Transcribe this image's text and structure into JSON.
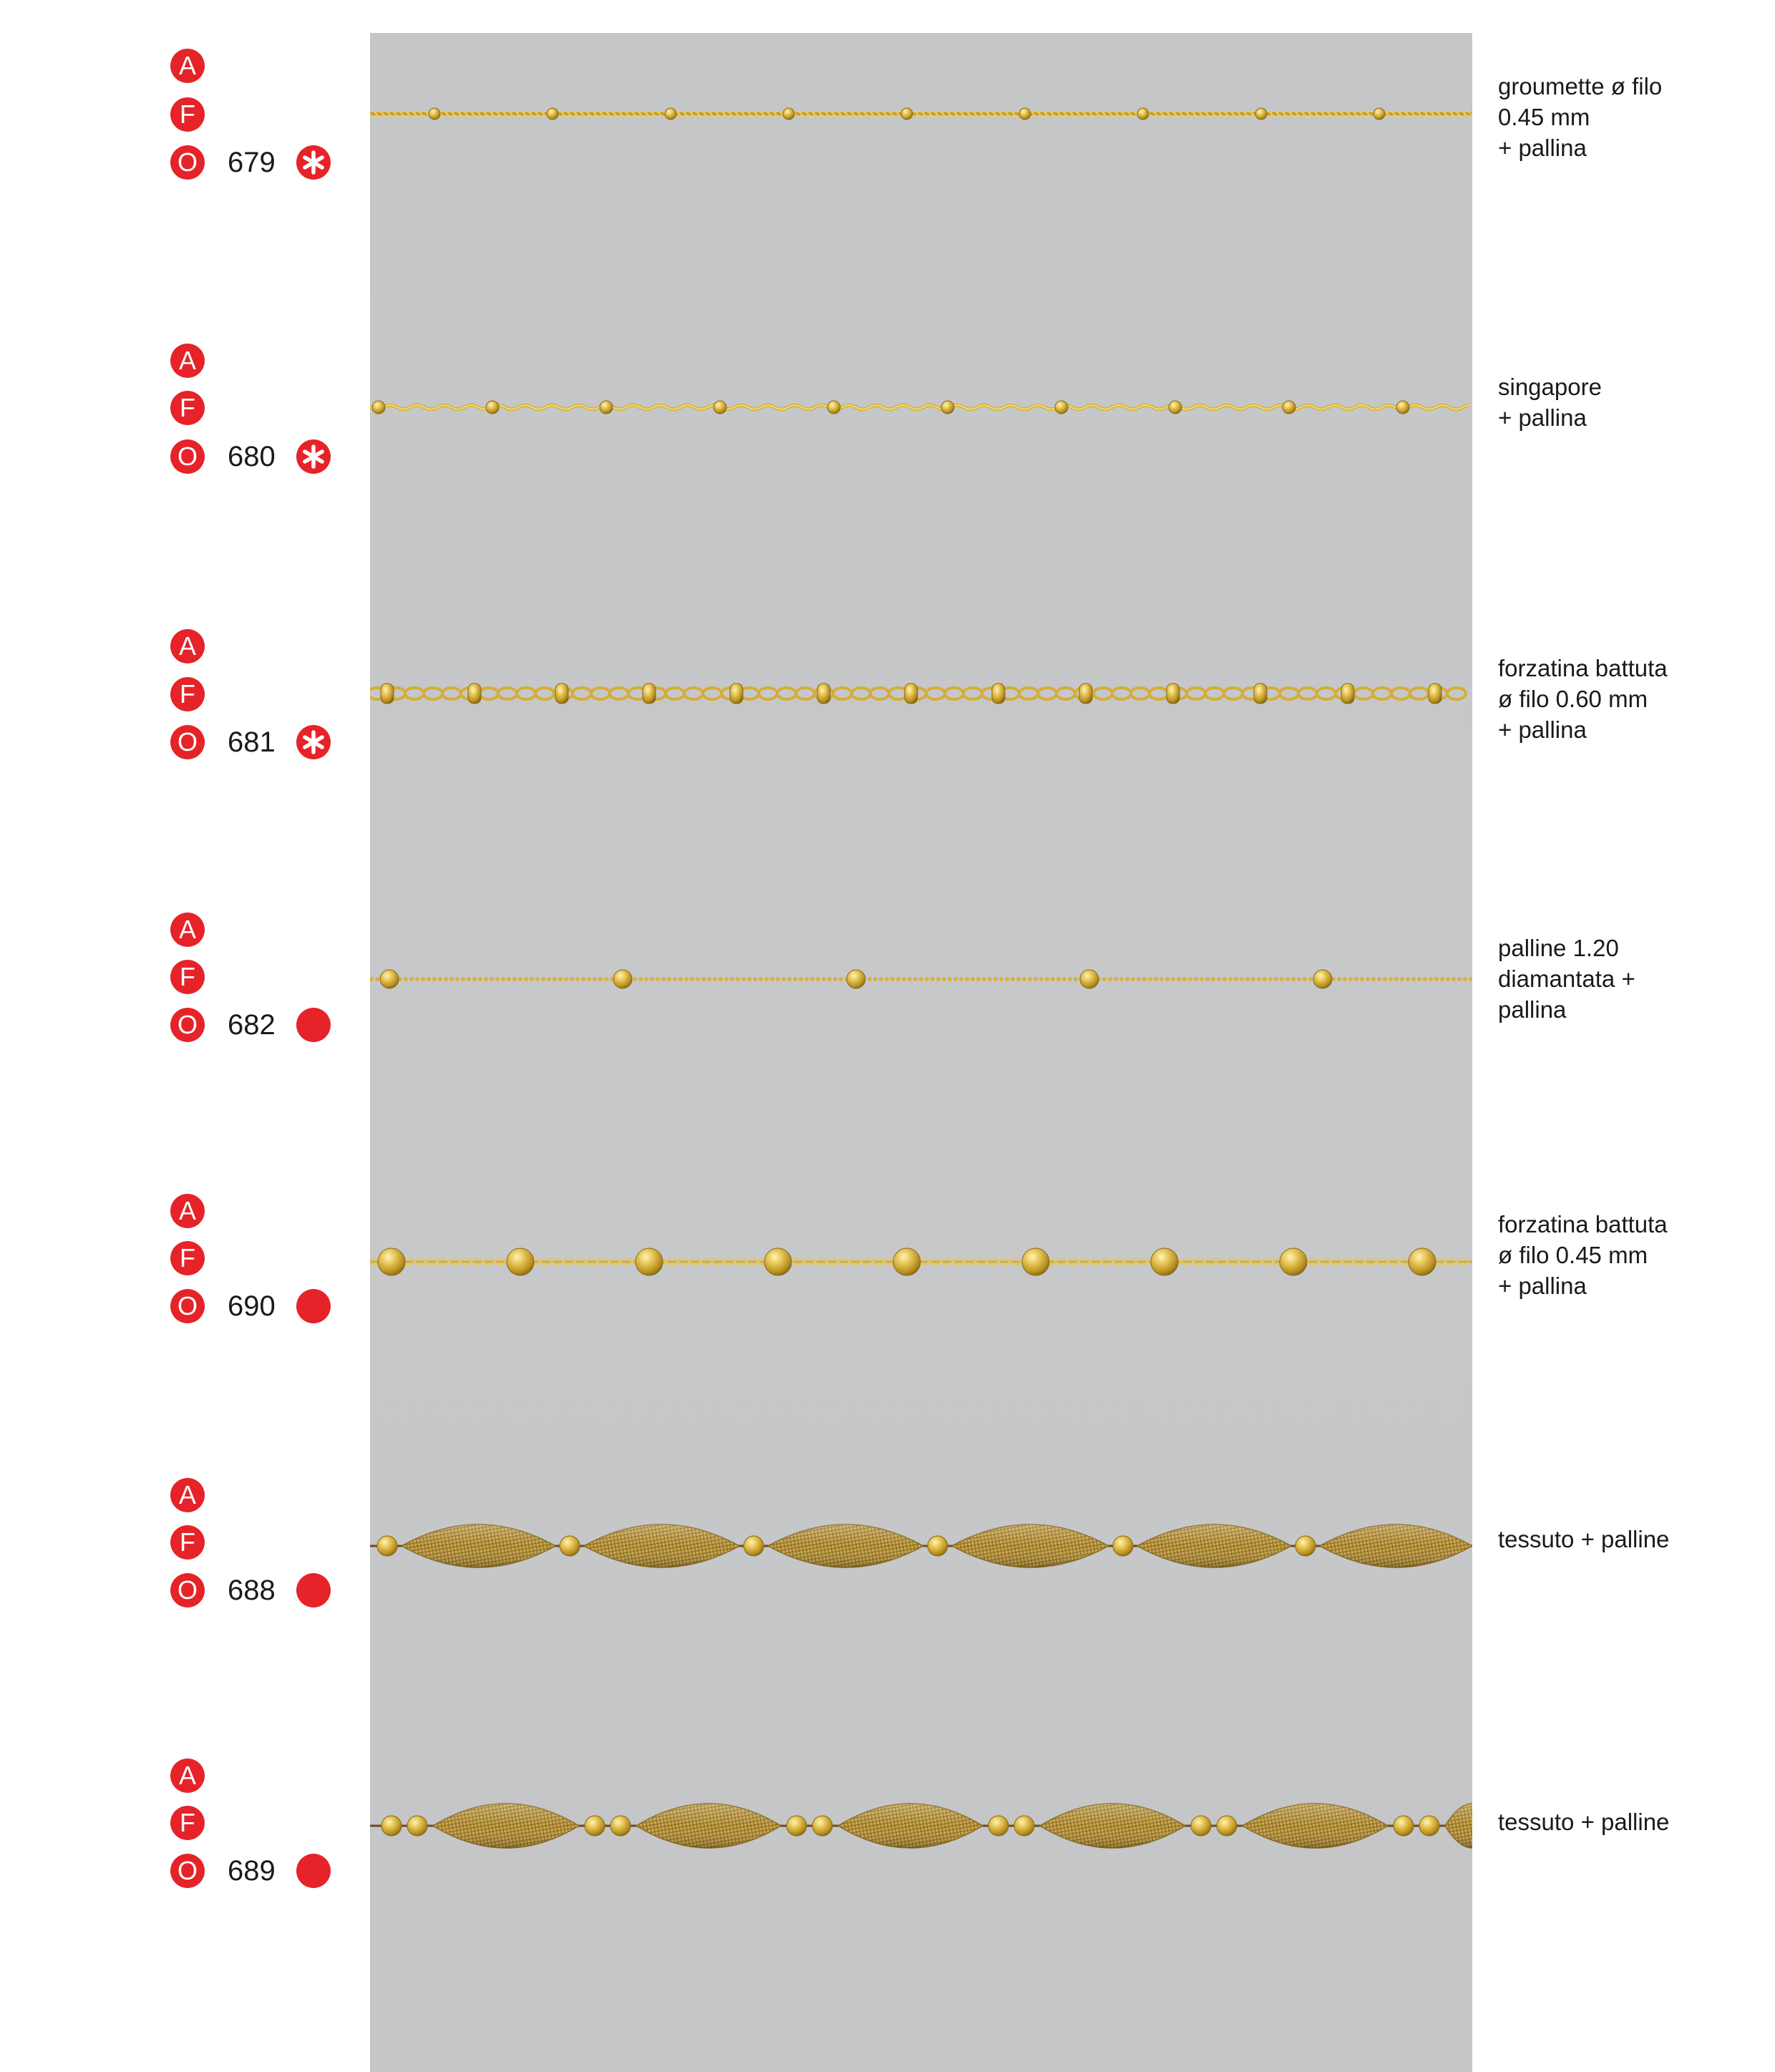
{
  "colors": {
    "accent_red": "#e52329",
    "panel_gray": "#c5c7c9",
    "gold": "#d7b23a",
    "gold_light": "#f2dc82",
    "gold_dark": "#9b7619",
    "mesh_gold": "#c9a54a"
  },
  "rows": [
    {
      "badges": [
        "A",
        "F",
        "O"
      ],
      "code": "679",
      "marker": "asterisk-icon",
      "chain_style": "groumette-ball",
      "desc": [
        "groumette ø filo",
        "0.45 mm",
        "+ pallina"
      ]
    },
    {
      "badges": [
        "A",
        "F",
        "O"
      ],
      "code": "680",
      "marker": "asterisk-icon",
      "chain_style": "singapore-ball",
      "desc": [
        "singapore",
        "+ pallina"
      ]
    },
    {
      "badges": [
        "A",
        "F",
        "O"
      ],
      "code": "681",
      "marker": "asterisk-icon",
      "chain_style": "forzatina-060-ball",
      "desc": [
        "forzatina battuta",
        "ø filo 0.60 mm",
        "+ pallina"
      ]
    },
    {
      "badges": [
        "A",
        "F",
        "O"
      ],
      "code": "682",
      "marker": "dot-icon",
      "chain_style": "palline-ball",
      "desc": [
        "palline 1.20",
        "diamantata +",
        "pallina"
      ]
    },
    {
      "badges": [
        "A",
        "F",
        "O"
      ],
      "code": "690",
      "marker": "dot-icon",
      "chain_style": "forzatina-045-ball",
      "desc": [
        "forzatina battuta",
        "ø filo 0.45 mm",
        "+ pallina"
      ]
    },
    {
      "badges": [
        "A",
        "F",
        "O"
      ],
      "code": "688",
      "marker": "dot-icon",
      "chain_style": "mesh-single-ball",
      "desc": [
        "tessuto + palline"
      ]
    },
    {
      "badges": [
        "A",
        "F",
        "O"
      ],
      "code": "689",
      "marker": "dot-icon",
      "chain_style": "mesh-double-ball",
      "desc": [
        "tessuto + palline"
      ]
    }
  ]
}
